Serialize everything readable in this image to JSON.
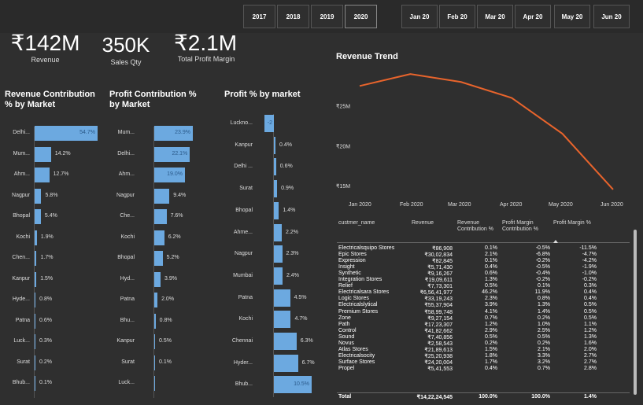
{
  "years": [
    "2017",
    "2018",
    "2019",
    "2020"
  ],
  "months": [
    "Jan 20",
    "Feb 20",
    "Mar 20",
    "Apr 20",
    "May 20",
    "Jun 20"
  ],
  "kpis": [
    {
      "value": "₹142M",
      "label": "Revenue"
    },
    {
      "value": "350K",
      "label": "Sales Qty"
    },
    {
      "value": "₹2.1M",
      "label": "Total Profit Margin"
    }
  ],
  "revenue_contribution": {
    "title": "Revenue Contribution % by Market",
    "categories": [
      "Delhi...",
      "Mum...",
      "Ahm...",
      "Nagpur",
      "Bhopal",
      "Kochi",
      "Chen...",
      "Kanpur",
      "Hyde...",
      "Patna",
      "Luck...",
      "Surat",
      "Bhub..."
    ],
    "values": [
      54.7,
      14.2,
      12.7,
      5.8,
      5.4,
      1.9,
      1.7,
      1.5,
      0.8,
      0.6,
      0.3,
      0.2,
      0.1
    ],
    "labels": [
      "54.7%",
      "14.2%",
      "12.7%",
      "5.8%",
      "5.4%",
      "1.9%",
      "1.7%",
      "1.5%",
      "0.8%",
      "0.6%",
      "0.3%",
      "0.2%",
      "0.1%"
    ]
  },
  "profit_contribution": {
    "title": "Profit Contribution % by Market",
    "categories": [
      "Mum...",
      "Delhi...",
      "Ahm...",
      "Nagpur",
      "Che...",
      "Kochi",
      "Bhopal",
      "Hyd...",
      "Patna",
      "Bhu...",
      "Kanpur",
      "Surat",
      "Luck..."
    ],
    "values": [
      23.9,
      22.1,
      19.0,
      9.4,
      7.6,
      6.2,
      5.2,
      3.9,
      2.0,
      0.8,
      0.5,
      0.1,
      0.0
    ],
    "labels": [
      "23.9%",
      "22.1%",
      "19.0%",
      "9.4%",
      "7.6%",
      "6.2%",
      "5.2%",
      "3.9%",
      "2.0%",
      "0.8%",
      "0.5%",
      "0.1%",
      ""
    ]
  },
  "profit_pct": {
    "title": "Profit % by market",
    "categories": [
      "Luckno...",
      "Kanpur",
      "Delhi ...",
      "Surat",
      "Bhopal",
      "Ahme...",
      "Nagpur",
      "Mumbai",
      "Patna",
      "Kochi",
      "Chennai",
      "Hyder...",
      "Bhub..."
    ],
    "values": [
      -2,
      0.4,
      0.6,
      0.9,
      1.4,
      2.2,
      2.3,
      2.4,
      4.5,
      4.7,
      6.3,
      6.7,
      10.5
    ],
    "labels": [
      "-2",
      "0.4%",
      "0.6%",
      "0.9%",
      "1.4%",
      "2.2%",
      "2.3%",
      "2.4%",
      "4.5%",
      "4.7%",
      "6.3%",
      "6.7%",
      "10.5%"
    ]
  },
  "chart_data": {
    "type": "line",
    "title": "Revenue Trend",
    "x": [
      "Jan 2020",
      "Feb 2020",
      "Mar 2020",
      "Apr 2020",
      "May 2020",
      "Jun 2020"
    ],
    "series": [
      {
        "values": [
          27.5,
          29,
          28,
          26,
          21.5,
          14.5
        ]
      }
    ],
    "y_ticks": [
      "₹25M",
      "₹20M",
      "₹15M"
    ],
    "y_tick_values": [
      25,
      20,
      15
    ],
    "ylim": [
      14,
      30
    ],
    "line_color": "#e8642c"
  },
  "table": {
    "headers": [
      "custmer_name",
      "Revenue",
      "Revenue Contribution %",
      "Profit Margin Contribution %",
      "Profit Margin %"
    ],
    "rows": [
      [
        "Electricalsquipo Stores",
        "₹86,908",
        "0.1%",
        "-0.5%",
        "-11.5%"
      ],
      [
        "Epic Stores",
        "₹30,02,834",
        "2.1%",
        "-6.8%",
        "-4.7%"
      ],
      [
        "Expression",
        "₹82,845",
        "0.1%",
        "-0.2%",
        "-4.2%"
      ],
      [
        "Insight",
        "₹5,71,430",
        "0.4%",
        "-0.5%",
        "-1.9%"
      ],
      [
        "Synthetic",
        "₹9,16,267",
        "0.6%",
        "-0.4%",
        "-1.0%"
      ],
      [
        "Integration Stores",
        "₹19,09,611",
        "1.3%",
        "-0.2%",
        "-0.2%"
      ],
      [
        "Relief",
        "₹7,73,301",
        "0.5%",
        "0.1%",
        "0.3%"
      ],
      [
        "Electricalsara Stores",
        "₹6,56,41,977",
        "46.2%",
        "11.9%",
        "0.4%"
      ],
      [
        "Logic Stores",
        "₹33,19,243",
        "2.3%",
        "0.8%",
        "0.4%"
      ],
      [
        "Electricalslytical",
        "₹55,37,904",
        "3.9%",
        "1.3%",
        "0.5%"
      ],
      [
        "Premium Stores",
        "₹58,99,748",
        "4.1%",
        "1.4%",
        "0.5%"
      ],
      [
        "Zone",
        "₹9,27,154",
        "0.7%",
        "0.2%",
        "0.5%"
      ],
      [
        "Path",
        "₹17,23,307",
        "1.2%",
        "1.0%",
        "1.1%"
      ],
      [
        "Control",
        "₹41,82,662",
        "2.9%",
        "2.5%",
        "1.2%"
      ],
      [
        "Sound",
        "₹7,40,856",
        "0.5%",
        "0.5%",
        "1.3%"
      ],
      [
        "Novus",
        "₹2,58,543",
        "0.2%",
        "0.2%",
        "1.6%"
      ],
      [
        "Atlas Stores",
        "₹21,89,613",
        "1.5%",
        "2.1%",
        "2.0%"
      ],
      [
        "Electricalsocity",
        "₹25,20,938",
        "1.8%",
        "3.3%",
        "2.7%"
      ],
      [
        "Surface Stores",
        "₹24,20,004",
        "1.7%",
        "3.2%",
        "2.7%"
      ],
      [
        "Propel",
        "₹5,41,553",
        "0.4%",
        "0.7%",
        "2.8%"
      ]
    ],
    "total": [
      "Total",
      "₹14,22,24,545",
      "100.0%",
      "100.0%",
      "1.4%"
    ]
  }
}
